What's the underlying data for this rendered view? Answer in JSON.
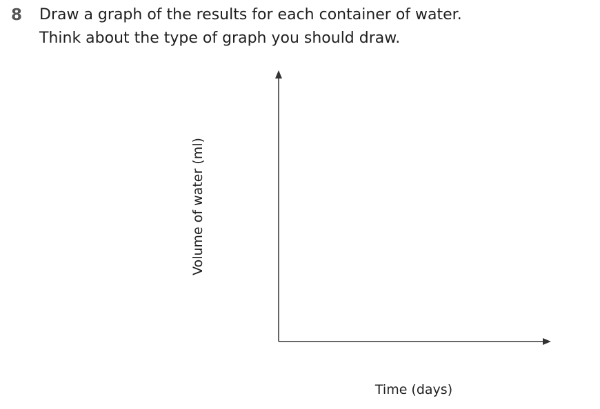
{
  "question": {
    "number": "8",
    "line1": "Draw a graph of the results for each container of water.",
    "line2": "Think about the type of graph you should draw."
  },
  "graph": {
    "y_axis_label": "Volume of water (ml)",
    "x_axis_label": "Time (days)"
  }
}
